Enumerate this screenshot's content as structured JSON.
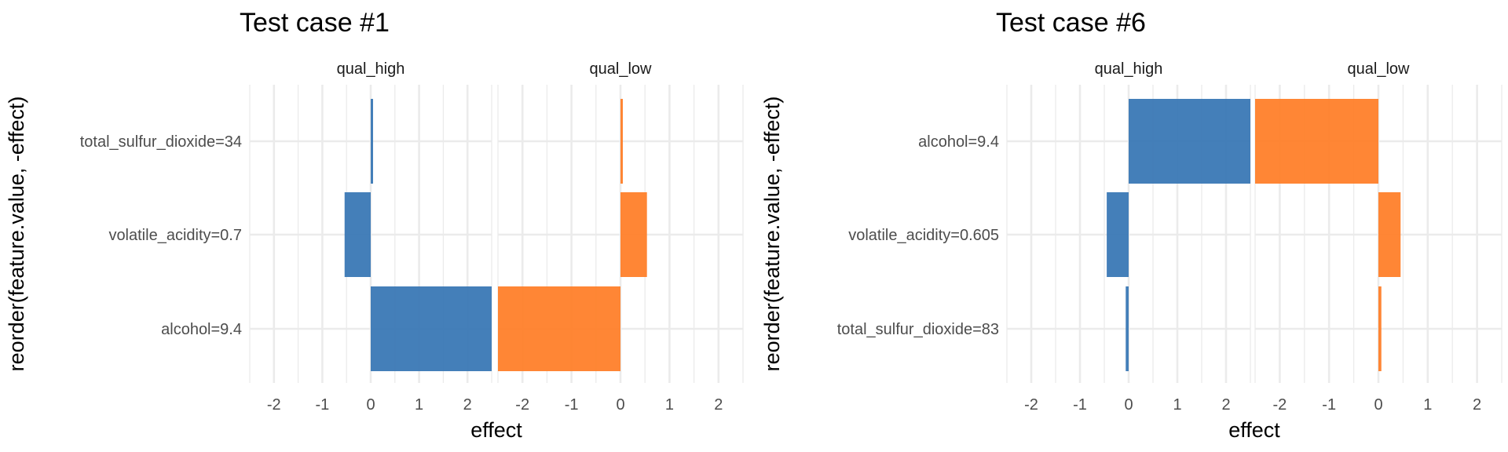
{
  "colors": {
    "qual_high": "#3a78b5",
    "qual_low": "#ff7f2a",
    "grid": "#ebebeb"
  },
  "chart_data": [
    {
      "type": "bar",
      "orientation": "horizontal",
      "title": "Test case #1",
      "xlabel": "effect",
      "ylabel": "reorder(feature.value, -effect)",
      "xlim": [
        -2.5,
        2.5
      ],
      "xticks": [
        "-2",
        "-1",
        "0",
        "1",
        "2"
      ],
      "xtick_values": [
        -2,
        -1,
        0,
        1,
        2
      ],
      "categories": [
        "total_sulfur_dioxide=34",
        "volatile_acidity=0.7",
        "alcohol=9.4"
      ],
      "grid": true,
      "facets": [
        {
          "name": "qual_high",
          "values": [
            0.01,
            -0.54,
            2.5
          ]
        },
        {
          "name": "qual_low",
          "values": [
            0.01,
            0.54,
            -2.5
          ]
        }
      ]
    },
    {
      "type": "bar",
      "orientation": "horizontal",
      "title": "Test case #6",
      "xlabel": "effect",
      "ylabel": "reorder(feature.value, -effect)",
      "xlim": [
        -2.5,
        2.5
      ],
      "xticks": [
        "-2",
        "-1",
        "0",
        "1",
        "2"
      ],
      "xtick_values": [
        -2,
        -1,
        0,
        1,
        2
      ],
      "categories": [
        "alcohol=9.4",
        "volatile_acidity=0.605",
        "total_sulfur_dioxide=83"
      ],
      "grid": true,
      "facets": [
        {
          "name": "qual_high",
          "values": [
            2.5,
            -0.45,
            -0.06
          ]
        },
        {
          "name": "qual_low",
          "values": [
            -2.5,
            0.45,
            0.06
          ]
        }
      ]
    }
  ]
}
